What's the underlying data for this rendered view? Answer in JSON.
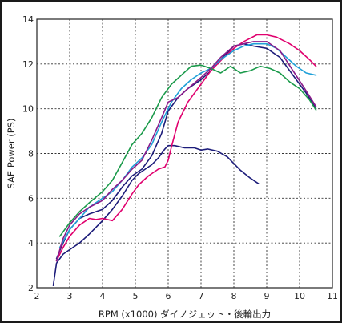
{
  "chart_data": {
    "type": "line",
    "xlabel": "RPM (x1000) ダイノジェット・後輪出力",
    "ylabel": "SAE Power (PS)",
    "xlim": [
      2,
      11
    ],
    "ylim": [
      2,
      14
    ],
    "x_ticks": [
      "2",
      "3",
      "4",
      "5",
      "6",
      "7",
      "8",
      "9",
      "10",
      "11"
    ],
    "y_ticks": [
      "2",
      "4",
      "6",
      "8",
      "10",
      "12",
      "14"
    ],
    "grid": true,
    "background_color": "#ffffff",
    "series": [
      {
        "color": "#1c1c7a",
        "x": [
          2.5,
          2.6,
          2.8,
          3.0,
          3.3,
          3.6,
          4.0,
          4.3,
          4.6,
          4.9,
          5.1,
          5.3,
          5.5,
          5.7,
          5.9,
          6.0,
          6.2,
          6.5,
          6.8,
          7.0,
          7.2,
          7.5,
          7.8,
          8.0,
          8.2,
          8.5,
          8.75
        ],
        "y": [
          2.1,
          3.1,
          3.5,
          3.7,
          4.0,
          4.4,
          5.0,
          5.5,
          6.1,
          6.8,
          7.1,
          7.3,
          7.5,
          7.8,
          8.2,
          8.35,
          8.35,
          8.25,
          8.25,
          8.15,
          8.2,
          8.1,
          7.85,
          7.55,
          7.25,
          6.9,
          6.65
        ]
      },
      {
        "color": "#1c1c7a",
        "x": [
          2.6,
          2.8,
          3.0,
          3.3,
          3.6,
          4.0,
          4.3,
          4.6,
          4.9,
          5.2,
          5.5,
          5.8,
          6.0,
          6.3,
          6.6,
          7.0,
          7.3,
          7.6,
          8.0,
          8.3,
          8.6,
          9.0,
          9.4,
          9.8,
          10.2,
          10.5
        ],
        "y": [
          3.3,
          4.0,
          4.6,
          5.1,
          5.3,
          5.5,
          5.9,
          6.5,
          7.0,
          7.3,
          7.9,
          8.9,
          9.9,
          10.5,
          10.9,
          11.3,
          11.7,
          12.2,
          12.8,
          12.9,
          12.8,
          12.7,
          12.3,
          11.5,
          10.7,
          10.0
        ]
      },
      {
        "color": "#e0006e",
        "x": [
          2.6,
          2.8,
          3.0,
          3.3,
          3.6,
          3.8,
          4.0,
          4.3,
          4.6,
          4.9,
          5.1,
          5.4,
          5.7,
          5.9,
          6.0,
          6.1,
          6.3,
          6.6,
          7.0,
          7.3,
          7.7,
          8.0,
          8.3,
          8.7,
          9.0,
          9.3,
          9.7,
          10.0,
          10.3,
          10.5
        ],
        "y": [
          3.2,
          3.8,
          4.3,
          4.8,
          5.1,
          5.05,
          5.1,
          5.0,
          5.5,
          6.2,
          6.6,
          7.0,
          7.3,
          7.4,
          7.7,
          8.3,
          9.4,
          10.3,
          11.1,
          11.7,
          12.3,
          12.7,
          13.0,
          13.3,
          13.3,
          13.2,
          12.9,
          12.6,
          12.2,
          11.9
        ]
      },
      {
        "color": "#1fa0d8",
        "x": [
          2.7,
          3.0,
          3.3,
          3.6,
          4.0,
          4.3,
          4.6,
          4.9,
          5.2,
          5.5,
          5.8,
          6.1,
          6.4,
          6.7,
          7.0,
          7.3,
          7.6,
          8.0,
          8.3,
          8.6,
          9.0,
          9.3,
          9.6,
          9.9,
          10.2,
          10.5
        ],
        "y": [
          3.8,
          4.6,
          5.1,
          5.6,
          6.0,
          6.3,
          6.8,
          7.4,
          7.8,
          8.4,
          9.4,
          10.3,
          10.9,
          11.3,
          11.6,
          11.8,
          12.2,
          12.6,
          12.8,
          12.9,
          12.9,
          12.7,
          12.3,
          11.9,
          11.6,
          11.5
        ]
      },
      {
        "color": "#1a9a4a",
        "x": [
          2.7,
          3.0,
          3.3,
          3.6,
          4.0,
          4.3,
          4.6,
          4.9,
          5.2,
          5.5,
          5.8,
          6.1,
          6.4,
          6.7,
          7.0,
          7.3,
          7.6,
          7.9,
          8.2,
          8.5,
          8.8,
          9.1,
          9.4,
          9.7,
          10.0,
          10.3,
          10.5
        ],
        "y": [
          4.3,
          4.9,
          5.4,
          5.8,
          6.3,
          6.8,
          7.6,
          8.4,
          8.9,
          9.6,
          10.5,
          11.1,
          11.5,
          11.9,
          11.95,
          11.8,
          11.6,
          11.9,
          11.6,
          11.7,
          11.9,
          11.8,
          11.6,
          11.2,
          10.9,
          10.4,
          9.95
        ]
      },
      {
        "color": "#8a1a8a",
        "x": [
          2.6,
          2.8,
          3.0,
          3.3,
          3.6,
          4.0,
          4.3,
          4.6,
          4.9,
          5.2,
          5.5,
          5.8,
          6.0,
          6.3,
          6.6,
          7.0,
          7.3,
          7.6,
          8.0,
          8.3,
          8.6,
          9.0,
          9.4,
          9.8,
          10.2,
          10.5
        ],
        "y": [
          3.2,
          4.2,
          4.8,
          5.3,
          5.6,
          5.9,
          6.4,
          6.8,
          7.3,
          7.7,
          8.6,
          9.6,
          10.3,
          10.5,
          10.9,
          11.4,
          11.8,
          12.3,
          12.8,
          12.9,
          13.0,
          13.0,
          12.6,
          11.7,
          10.8,
          10.1
        ]
      }
    ]
  }
}
